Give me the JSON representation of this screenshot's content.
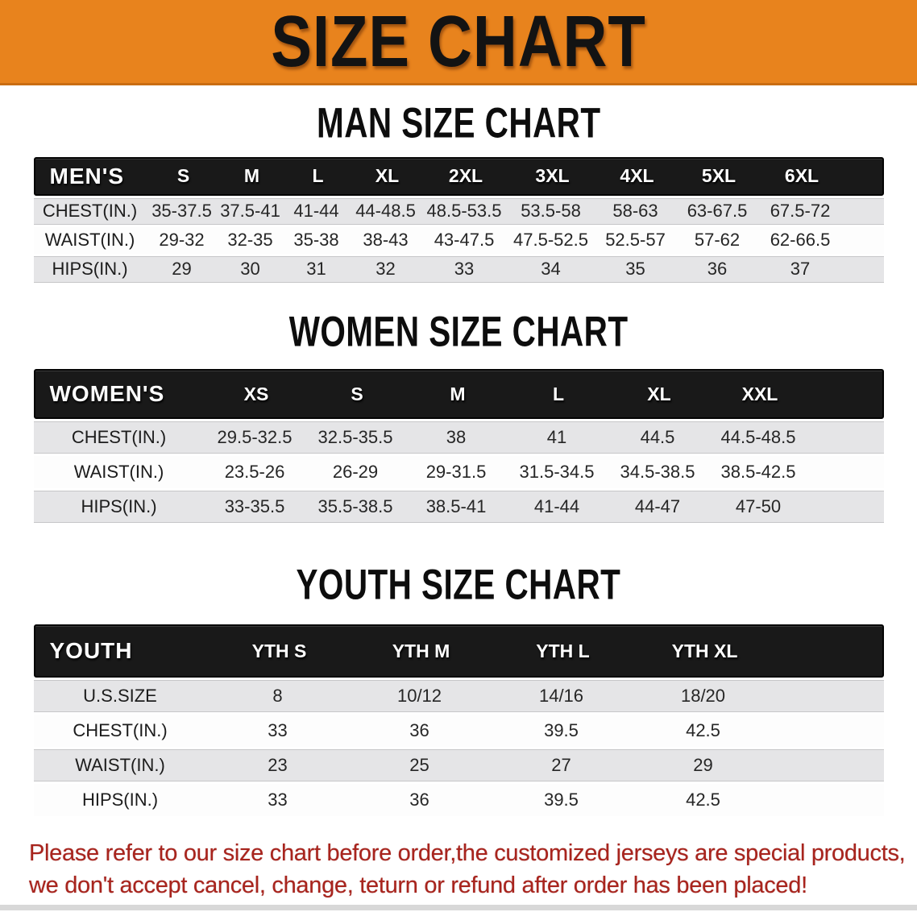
{
  "banner": {
    "title": "SIZE CHART"
  },
  "chart_data": [
    {
      "type": "table",
      "id": "men",
      "title": "MAN SIZE CHART",
      "corner_label": "MEN'S",
      "columns": [
        "S",
        "M",
        "L",
        "XL",
        "2XL",
        "3XL",
        "4XL",
        "5XL",
        "6XL"
      ],
      "rows": [
        {
          "label": "CHEST(IN.)",
          "values": [
            "35-37.5",
            "37.5-41",
            "41-44",
            "44-48.5",
            "48.5-53.5",
            "53.5-58",
            "58-63",
            "63-67.5",
            "67.5-72"
          ]
        },
        {
          "label": "WAIST(IN.)",
          "values": [
            "29-32",
            "32-35",
            "35-38",
            "38-43",
            "43-47.5",
            "47.5-52.5",
            "52.5-57",
            "57-62",
            "62-66.5"
          ]
        },
        {
          "label": "HIPS(IN.)",
          "values": [
            "29",
            "30",
            "31",
            "32",
            "33",
            "34",
            "35",
            "36",
            "37"
          ]
        }
      ]
    },
    {
      "type": "table",
      "id": "women",
      "title": "WOMEN SIZE CHART",
      "corner_label": "WOMEN'S",
      "columns": [
        "XS",
        "S",
        "M",
        "L",
        "XL",
        "XXL"
      ],
      "rows": [
        {
          "label": "CHEST(IN.)",
          "values": [
            "29.5-32.5",
            "32.5-35.5",
            "38",
            "41",
            "44.5",
            "44.5-48.5"
          ]
        },
        {
          "label": "WAIST(IN.)",
          "values": [
            "23.5-26",
            "26-29",
            "29-31.5",
            "31.5-34.5",
            "34.5-38.5",
            "38.5-42.5"
          ]
        },
        {
          "label": "HIPS(IN.)",
          "values": [
            "33-35.5",
            "35.5-38.5",
            "38.5-41",
            "41-44",
            "44-47",
            "47-50"
          ]
        }
      ]
    },
    {
      "type": "table",
      "id": "youth",
      "title": "YOUTH SIZE CHART",
      "corner_label": "YOUTH",
      "columns": [
        "YTH S",
        "YTH M",
        "YTH L",
        "YTH XL"
      ],
      "rows": [
        {
          "label": "U.S.SIZE",
          "values": [
            "8",
            "10/12",
            "14/16",
            "18/20"
          ]
        },
        {
          "label": "CHEST(IN.)",
          "values": [
            "33",
            "36",
            "39.5",
            "42.5"
          ]
        },
        {
          "label": "WAIST(IN.)",
          "values": [
            "23",
            "25",
            "27",
            "29"
          ]
        },
        {
          "label": "HIPS(IN.)",
          "values": [
            "33",
            "36",
            "39.5",
            "42.5"
          ]
        }
      ]
    }
  ],
  "disclaimer": {
    "line1": "Please refer to our size chart before order,the customized jerseys are special products,",
    "line2": "we don't accept cancel, change, teturn or refund after order has been placed!"
  },
  "colors": {
    "banner_bg": "#e8831d",
    "banner_text": "#131313",
    "header_band": "#191919",
    "header_text": "#ffffff",
    "row_gray": "#e5e5e7",
    "row_white": "#fdfdfd",
    "disclaimer_red": "#a8241d",
    "bottom_strip": "#d8d8d8"
  }
}
